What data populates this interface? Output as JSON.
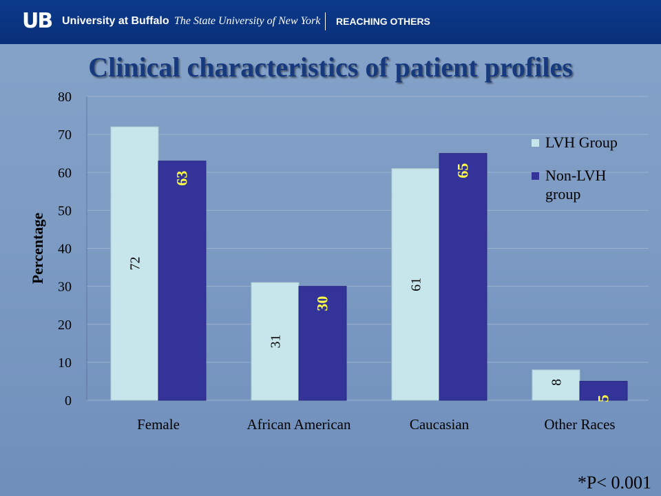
{
  "header": {
    "logo": "UB",
    "university": "University at Buffalo",
    "suny": "The State University of New York",
    "tagline": "REACHING OTHERS"
  },
  "slide_title": "Clinical characteristics of patient profiles",
  "footnote": "*P< 0.001",
  "colors": {
    "lvh": "#c6e6ec",
    "non_lvh": "#33339a",
    "lvh_label": "#000000",
    "non_lvh_label": "#ffff44",
    "grid": "#9cb1cd"
  },
  "chart_data": {
    "type": "bar",
    "categories": [
      "Female",
      "African American",
      "Caucasian",
      "Other Races"
    ],
    "series": [
      {
        "name": "LVH Group",
        "values": [
          72,
          31,
          61,
          8
        ]
      },
      {
        "name": "Non-LVH group",
        "values": [
          63,
          30,
          65,
          5
        ]
      }
    ],
    "ylabel": "Percentage",
    "ylim": [
      0,
      80
    ],
    "yticks": [
      0,
      10,
      20,
      30,
      40,
      50,
      60,
      70,
      80
    ],
    "grid": true,
    "legend": "right",
    "data_labels": "rotated inside bars"
  }
}
